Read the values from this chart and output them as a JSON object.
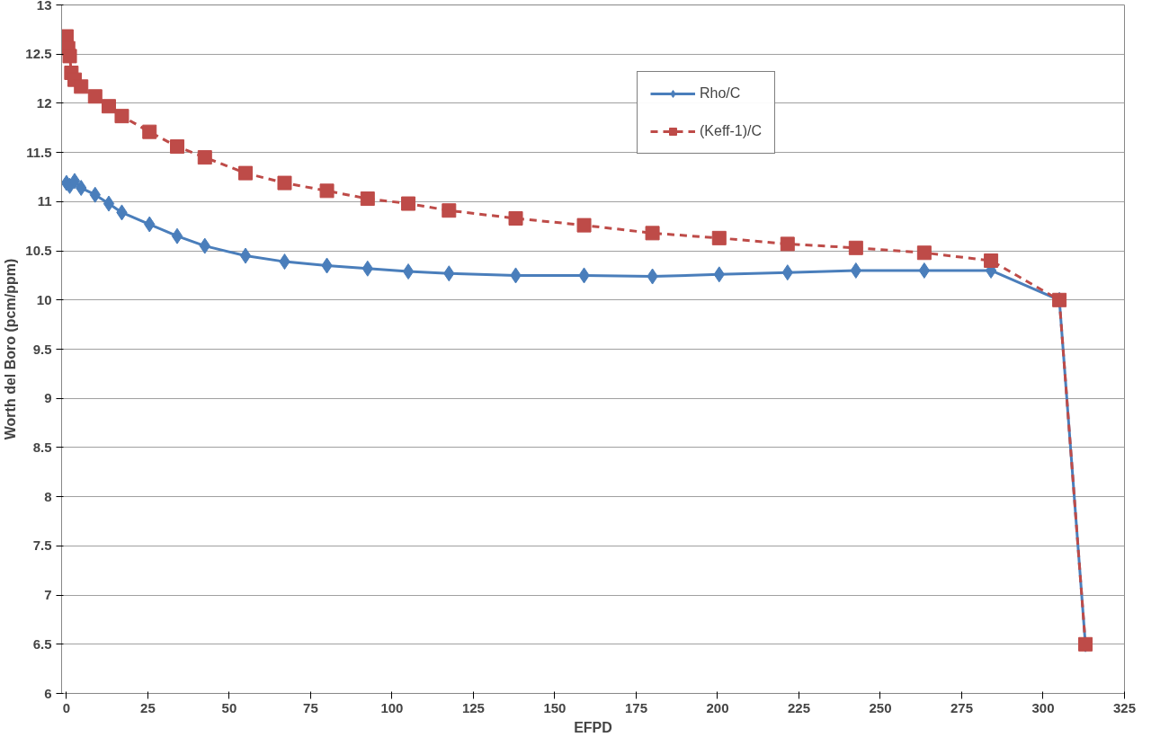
{
  "chart_data": {
    "type": "line",
    "xlabel": "EFPD",
    "ylabel": "Worth del Boro (pcm/ppm)",
    "xlim": [
      -1.5,
      325
    ],
    "ylim": [
      6,
      13
    ],
    "xticks": [
      0,
      25,
      50,
      75,
      100,
      125,
      150,
      175,
      200,
      225,
      250,
      275,
      300,
      325
    ],
    "yticks": [
      6,
      {
        "value": 6.5,
        "label": "6.5"
      },
      7,
      {
        "value": 7.5,
        "label": "7.5"
      },
      8,
      {
        "value": 8.5,
        "label": "8.5"
      },
      9,
      {
        "value": 9.5,
        "label": "9.5"
      },
      10,
      {
        "value": 10.5,
        "label": "10.5"
      },
      11,
      {
        "value": 11.5,
        "label": "11.5"
      },
      12,
      {
        "value": 12.5,
        "label": "12.5"
      },
      13
    ],
    "grid": "y",
    "legend": "top right",
    "series": [
      {
        "name": "Rho/C",
        "color": "#4a7ebb",
        "marker": "diamond",
        "line_style": "solid",
        "x": [
          0,
          1,
          2.5,
          4.5,
          8.8,
          13,
          17,
          25.5,
          34,
          42.5,
          55,
          67,
          80,
          92.5,
          105,
          117.5,
          138,
          159,
          180,
          200.5,
          221.5,
          242.5,
          263.5,
          284,
          305,
          313
        ],
        "values": [
          11.19,
          11.16,
          11.21,
          11.14,
          11.07,
          10.98,
          10.89,
          10.77,
          10.65,
          10.55,
          10.45,
          10.39,
          10.35,
          10.32,
          10.29,
          10.27,
          10.25,
          10.25,
          10.24,
          10.26,
          10.28,
          10.3,
          10.3,
          10.3,
          10.0,
          6.5
        ]
      },
      {
        "name": "(Keff-1)/C",
        "color": "#be4b48",
        "marker": "square",
        "line_style": "dashed",
        "x": [
          0,
          0.5,
          1,
          1.5,
          2.5,
          4.5,
          8.8,
          13,
          17,
          25.5,
          34,
          42.5,
          55,
          67,
          80,
          92.5,
          105,
          117.5,
          138,
          159,
          180,
          200.5,
          221.5,
          242.5,
          263.5,
          284,
          305,
          313
        ],
        "values": [
          12.68,
          12.56,
          12.48,
          12.31,
          12.24,
          12.17,
          12.07,
          11.97,
          11.87,
          11.71,
          11.56,
          11.45,
          11.29,
          11.19,
          11.11,
          11.03,
          10.98,
          10.91,
          10.83,
          10.76,
          10.68,
          10.63,
          10.57,
          10.53,
          10.48,
          10.4,
          10.0,
          6.5
        ]
      }
    ]
  }
}
